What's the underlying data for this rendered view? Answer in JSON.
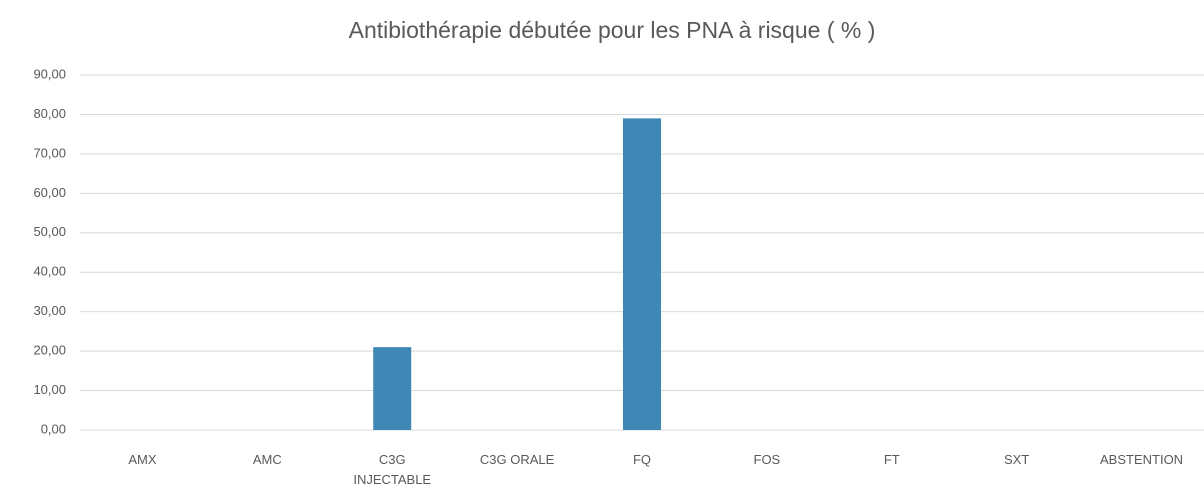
{
  "chart_data": {
    "type": "bar",
    "title": "Antibiothérapie débutée pour les PNA à risque ( % )",
    "categories": [
      "AMX",
      "AMC",
      "C3G INJECTABLE",
      "C3G ORALE",
      "FQ",
      "FOS",
      "FT",
      "SXT",
      "ABSTENTION"
    ],
    "values": [
      0,
      0,
      21,
      0,
      79,
      0,
      0,
      0,
      0
    ],
    "color": "#3f87b4",
    "ylim": [
      0,
      90
    ],
    "yticks": [
      {
        "value": 0,
        "label": "0,00"
      },
      {
        "value": 10,
        "label": "10,00"
      },
      {
        "value": 20,
        "label": "20,00"
      },
      {
        "value": 30,
        "label": "30,00"
      },
      {
        "value": 40,
        "label": "40,00"
      },
      {
        "value": 50,
        "label": "50,00"
      },
      {
        "value": 60,
        "label": "60,00"
      },
      {
        "value": 70,
        "label": "70,00"
      },
      {
        "value": 80,
        "label": "80,00"
      },
      {
        "value": 90,
        "label": "90,00"
      }
    ],
    "grid": true
  }
}
